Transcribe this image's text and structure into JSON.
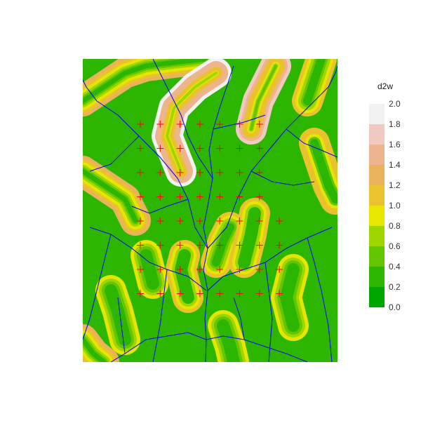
{
  "legend": {
    "title": "d2w",
    "bins": [
      {
        "from": 0.0,
        "to": 0.2,
        "color": "#00A600"
      },
      {
        "from": 0.2,
        "to": 0.4,
        "color": "#2DB600"
      },
      {
        "from": 0.4,
        "to": 0.6,
        "color": "#63C600"
      },
      {
        "from": 0.6,
        "to": 0.8,
        "color": "#A0D600"
      },
      {
        "from": 0.8,
        "to": 1.0,
        "color": "#E6E600"
      },
      {
        "from": 1.0,
        "to": 1.2,
        "color": "#E8C32E"
      },
      {
        "from": 1.2,
        "to": 1.4,
        "color": "#EBB25E"
      },
      {
        "from": 1.4,
        "to": 1.6,
        "color": "#EDB48E"
      },
      {
        "from": 1.6,
        "to": 1.8,
        "color": "#F0C9C0"
      },
      {
        "from": 1.8,
        "to": 2.0,
        "color": "#F2F2F2"
      }
    ],
    "ticks": [
      "2.0",
      "1.8",
      "1.6",
      "1.4",
      "1.2",
      "1.0",
      "0.8",
      "0.6",
      "0.4",
      "0.2",
      "0.0"
    ]
  },
  "map": {
    "stream_color": "#0000FF",
    "marker_color": "#FF0000",
    "marker_symbol": "+",
    "marker_grid": {
      "rows": 8,
      "cols": 8,
      "missing": [
        [
          0,
          7
        ],
        [
          1,
          7
        ],
        [
          2,
          7
        ],
        [
          3,
          7
        ]
      ]
    }
  }
}
